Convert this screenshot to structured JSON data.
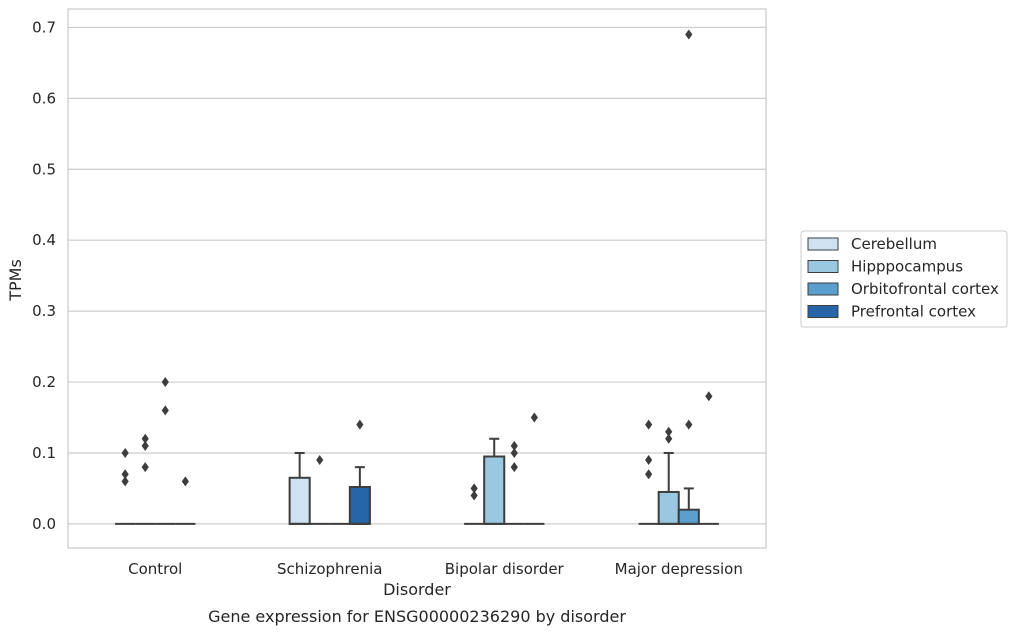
{
  "chart_data": {
    "type": "box",
    "title": "Gene expression for ENSG00000236290 by disorder",
    "xlabel": "Disorder",
    "ylabel": "TPMs",
    "ylim": [
      -0.034,
      0.726
    ],
    "yticks": [
      0.0,
      0.1,
      0.2,
      0.3,
      0.4,
      0.5,
      0.6,
      0.7
    ],
    "ytick_labels": [
      "0.0",
      "0.1",
      "0.2",
      "0.3",
      "0.4",
      "0.5",
      "0.6",
      "0.7"
    ],
    "grid": "horizontal",
    "legend_position": "right",
    "categories": [
      "Control",
      "Schizophrenia",
      "Bipolar disorder",
      "Major depression"
    ],
    "series": [
      {
        "name": "Cerebellum",
        "color": "#d0e2f2",
        "boxes": [
          {
            "min": 0,
            "q1": 0,
            "median": 0,
            "q3": 0,
            "max": 0,
            "outliers": [
              0.06,
              0.07,
              0.1
            ]
          },
          {
            "min": 0,
            "q1": 0,
            "median": 0,
            "q3": 0.065,
            "max": 0.1,
            "outliers": []
          },
          {
            "min": 0,
            "q1": 0,
            "median": 0,
            "q3": 0,
            "max": 0,
            "outliers": [
              0.04,
              0.05
            ]
          },
          {
            "min": 0,
            "q1": 0,
            "median": 0,
            "q3": 0,
            "max": 0,
            "outliers": [
              0.07,
              0.09,
              0.14
            ]
          }
        ]
      },
      {
        "name": "Hipppocampus",
        "color": "#9ac8e0",
        "boxes": [
          {
            "min": 0,
            "q1": 0,
            "median": 0,
            "q3": 0,
            "max": 0,
            "outliers": [
              0.08,
              0.11,
              0.12
            ]
          },
          {
            "min": 0,
            "q1": 0,
            "median": 0,
            "q3": 0,
            "max": 0,
            "outliers": [
              0.09
            ]
          },
          {
            "min": 0,
            "q1": 0,
            "median": 0,
            "q3": 0.095,
            "max": 0.12,
            "outliers": []
          },
          {
            "min": 0,
            "q1": 0,
            "median": 0,
            "q3": 0.045,
            "max": 0.1,
            "outliers": [
              0.12,
              0.13
            ]
          }
        ]
      },
      {
        "name": "Orbitofrontal cortex",
        "color": "#5a9fcd",
        "boxes": [
          {
            "min": 0,
            "q1": 0,
            "median": 0,
            "q3": 0,
            "max": 0,
            "outliers": [
              0.16,
              0.2
            ]
          },
          {
            "min": 0,
            "q1": 0,
            "median": 0,
            "q3": 0,
            "max": 0,
            "outliers": []
          },
          {
            "min": 0,
            "q1": 0,
            "median": 0,
            "q3": 0,
            "max": 0,
            "outliers": [
              0.08,
              0.1,
              0.11
            ]
          },
          {
            "min": 0,
            "q1": 0,
            "median": 0,
            "q3": 0.02,
            "max": 0.05,
            "outliers": [
              0.14,
              0.69
            ]
          }
        ]
      },
      {
        "name": "Prefrontal cortex",
        "color": "#2565a8",
        "boxes": [
          {
            "min": 0,
            "q1": 0,
            "median": 0,
            "q3": 0,
            "max": 0,
            "outliers": [
              0.06
            ]
          },
          {
            "min": 0,
            "q1": 0,
            "median": 0,
            "q3": 0.052,
            "max": 0.08,
            "outliers": [
              0.14
            ]
          },
          {
            "min": 0,
            "q1": 0,
            "median": 0,
            "q3": 0,
            "max": 0,
            "outliers": [
              0.15
            ]
          },
          {
            "min": 0,
            "q1": 0,
            "median": 0,
            "q3": 0,
            "max": 0,
            "outliers": [
              0.18
            ]
          }
        ]
      }
    ]
  }
}
